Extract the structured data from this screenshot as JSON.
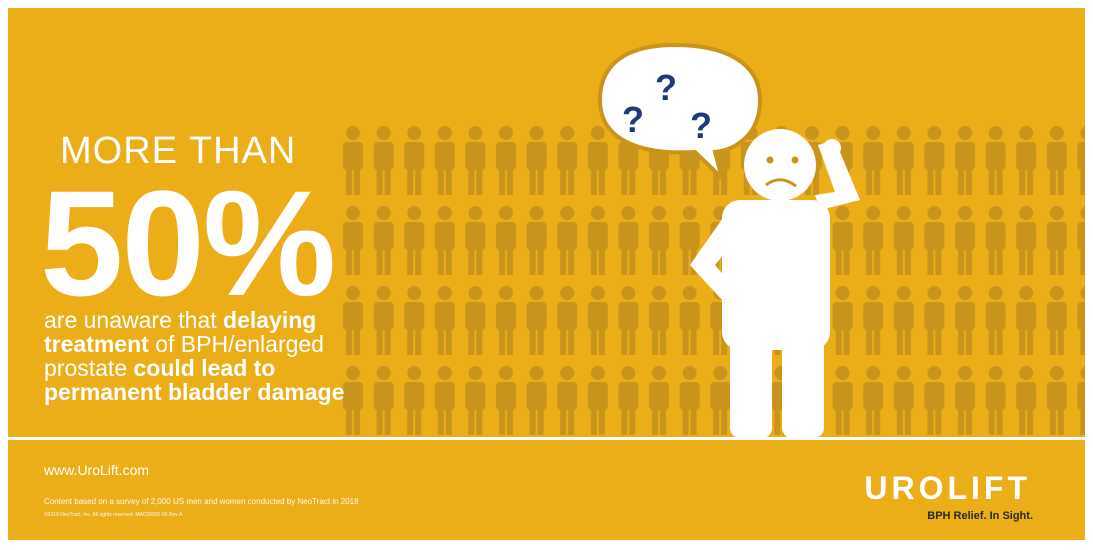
{
  "headline": {
    "lead": "MORE THAN",
    "stat": "50%"
  },
  "statement": [
    [
      {
        "text": "are unaware that ",
        "bold": false
      },
      {
        "text": "delaying",
        "bold": true
      }
    ],
    [
      {
        "text": "treatment",
        "bold": true
      },
      {
        "text": " of BPH/enlarged",
        "bold": false
      }
    ],
    [
      {
        "text": "prostate ",
        "bold": false
      },
      {
        "text": "could lead to",
        "bold": true
      }
    ],
    [
      {
        "text": "permanent bladder damage",
        "bold": true
      }
    ]
  ],
  "footer": {
    "url": "www.UroLift.com",
    "note": "Content based on a survey of 2,000 US men and women conducted by NeoTract in 2018",
    "copyright": "©2019 NeoTract, Inc. All rights reserved. MAC00925-05 Rev A",
    "logo": "UROLIFT",
    "tagline": "BPH Relief. In Sight."
  }
}
